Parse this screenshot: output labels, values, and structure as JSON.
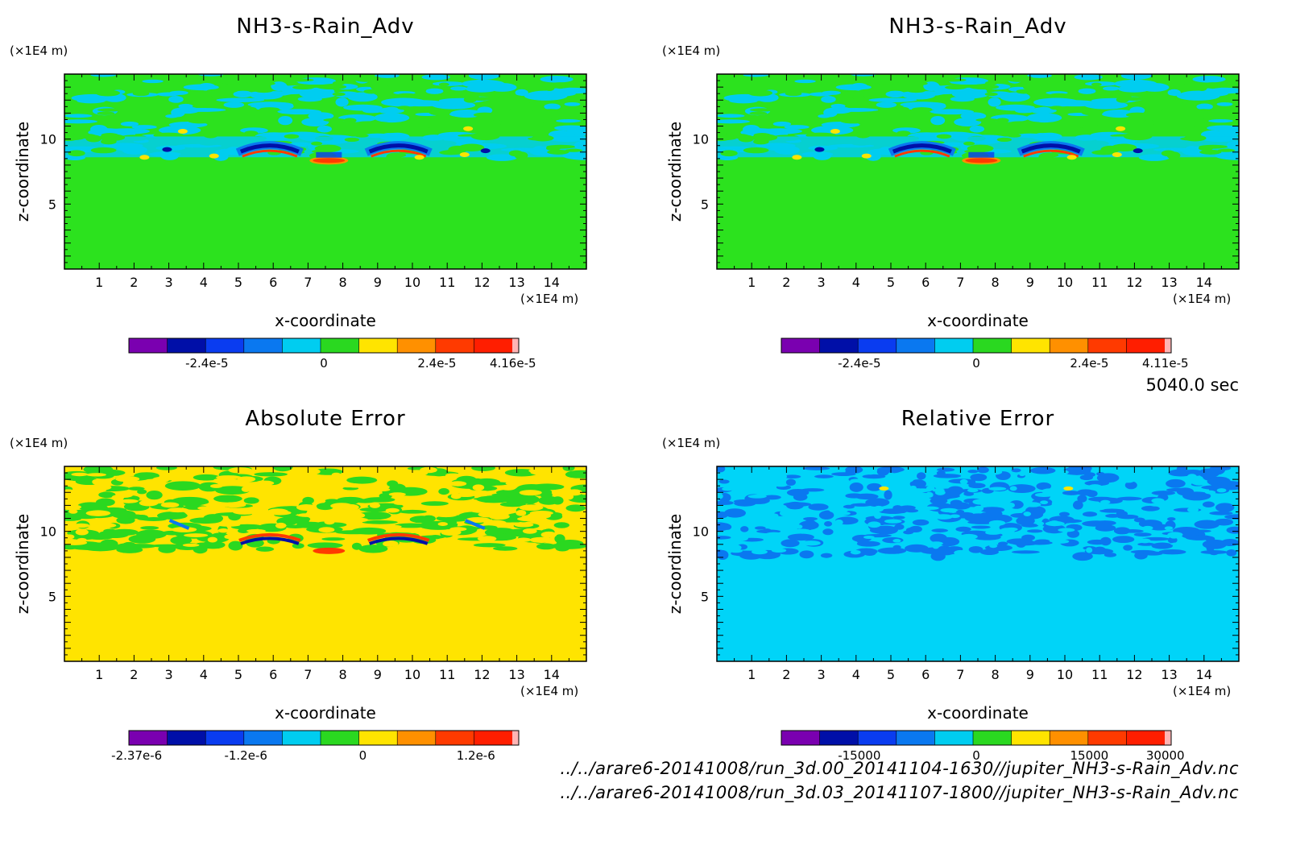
{
  "chart_data": [
    {
      "type": "heatmap",
      "title": "NH3-s-Rain_Adv",
      "xlabel": "x-coordinate",
      "ylabel": "z-coordinate",
      "x_unit": "(×1E4 m)",
      "y_unit": "(×1E4 m)",
      "xlim": [
        0,
        15
      ],
      "ylim": [
        0,
        15
      ],
      "x_ticks": [
        "1",
        "2",
        "3",
        "4",
        "5",
        "6",
        "7",
        "8",
        "9",
        "10",
        "11",
        "12",
        "13",
        "14"
      ],
      "y_ticks": [
        "5",
        "10"
      ],
      "colorbar": {
        "labels": [
          "-2.4e-5",
          "0",
          "2.4e-5",
          "4.16e-5"
        ],
        "colors": [
          "#7a00b0",
          "#000fa8",
          "#0a3cf0",
          "#0a78f0",
          "#00cdf0",
          "#2ad820",
          "#ffe400",
          "#ff9000",
          "#ff3a00",
          "#ff1e00",
          "#ffb4b4"
        ]
      },
      "background": "#2ce21e"
    },
    {
      "type": "heatmap",
      "title": "NH3-s-Rain_Adv",
      "xlabel": "x-coordinate",
      "ylabel": "z-coordinate",
      "x_unit": "(×1E4 m)",
      "y_unit": "(×1E4 m)",
      "xlim": [
        0,
        15
      ],
      "ylim": [
        0,
        15
      ],
      "x_ticks": [
        "1",
        "2",
        "3",
        "4",
        "5",
        "6",
        "7",
        "8",
        "9",
        "10",
        "11",
        "12",
        "13",
        "14"
      ],
      "y_ticks": [
        "5",
        "10"
      ],
      "colorbar": {
        "labels": [
          "-2.4e-5",
          "0",
          "2.4e-5",
          "4.11e-5"
        ],
        "colors": [
          "#7a00b0",
          "#000fa8",
          "#0a3cf0",
          "#0a78f0",
          "#00cdf0",
          "#2ad820",
          "#ffe400",
          "#ff9000",
          "#ff3a00",
          "#ff1e00",
          "#ffb4b4"
        ]
      },
      "background": "#2ce21e"
    },
    {
      "type": "heatmap",
      "title": "Absolute Error",
      "xlabel": "x-coordinate",
      "ylabel": "z-coordinate",
      "x_unit": "(×1E4 m)",
      "y_unit": "(×1E4 m)",
      "xlim": [
        0,
        15
      ],
      "ylim": [
        0,
        15
      ],
      "x_ticks": [
        "1",
        "2",
        "3",
        "4",
        "5",
        "6",
        "7",
        "8",
        "9",
        "10",
        "11",
        "12",
        "13",
        "14"
      ],
      "y_ticks": [
        "5",
        "10"
      ],
      "colorbar": {
        "labels": [
          "-2.37e-6",
          "-1.2e-6",
          "0",
          "1.2e-6"
        ],
        "colors": [
          "#7a00b0",
          "#000fa8",
          "#0a3cf0",
          "#0a78f0",
          "#00cdf0",
          "#2ad820",
          "#ffe400",
          "#ff9000",
          "#ff3a00",
          "#ff1e00",
          "#ffb4b4"
        ]
      },
      "background": "#ffe400"
    },
    {
      "type": "heatmap",
      "title": "Relative Error",
      "xlabel": "x-coordinate",
      "ylabel": "z-coordinate",
      "x_unit": "(×1E4 m)",
      "y_unit": "(×1E4 m)",
      "xlim": [
        0,
        15
      ],
      "ylim": [
        0,
        15
      ],
      "x_ticks": [
        "1",
        "2",
        "3",
        "4",
        "5",
        "6",
        "7",
        "8",
        "9",
        "10",
        "11",
        "12",
        "13",
        "14"
      ],
      "y_ticks": [
        "5",
        "10"
      ],
      "colorbar": {
        "labels": [
          "-15000",
          "0",
          "15000",
          "30000"
        ],
        "colors": [
          "#7a00b0",
          "#000fa8",
          "#0a3cf0",
          "#0a78f0",
          "#00cdf0",
          "#2ad820",
          "#ffe400",
          "#ff9000",
          "#ff3a00",
          "#ff1e00",
          "#ffb4b4"
        ]
      },
      "background": "#00d4f8"
    }
  ],
  "time_label": "5040.0 sec",
  "file_paths": [
    "../../arare6-20141008/run_3d.00_20141104-1630//jupiter_NH3-s-Rain_Adv.nc",
    "../../arare6-20141008/run_3d.03_20141107-1800//jupiter_NH3-s-Rain_Adv.nc"
  ]
}
